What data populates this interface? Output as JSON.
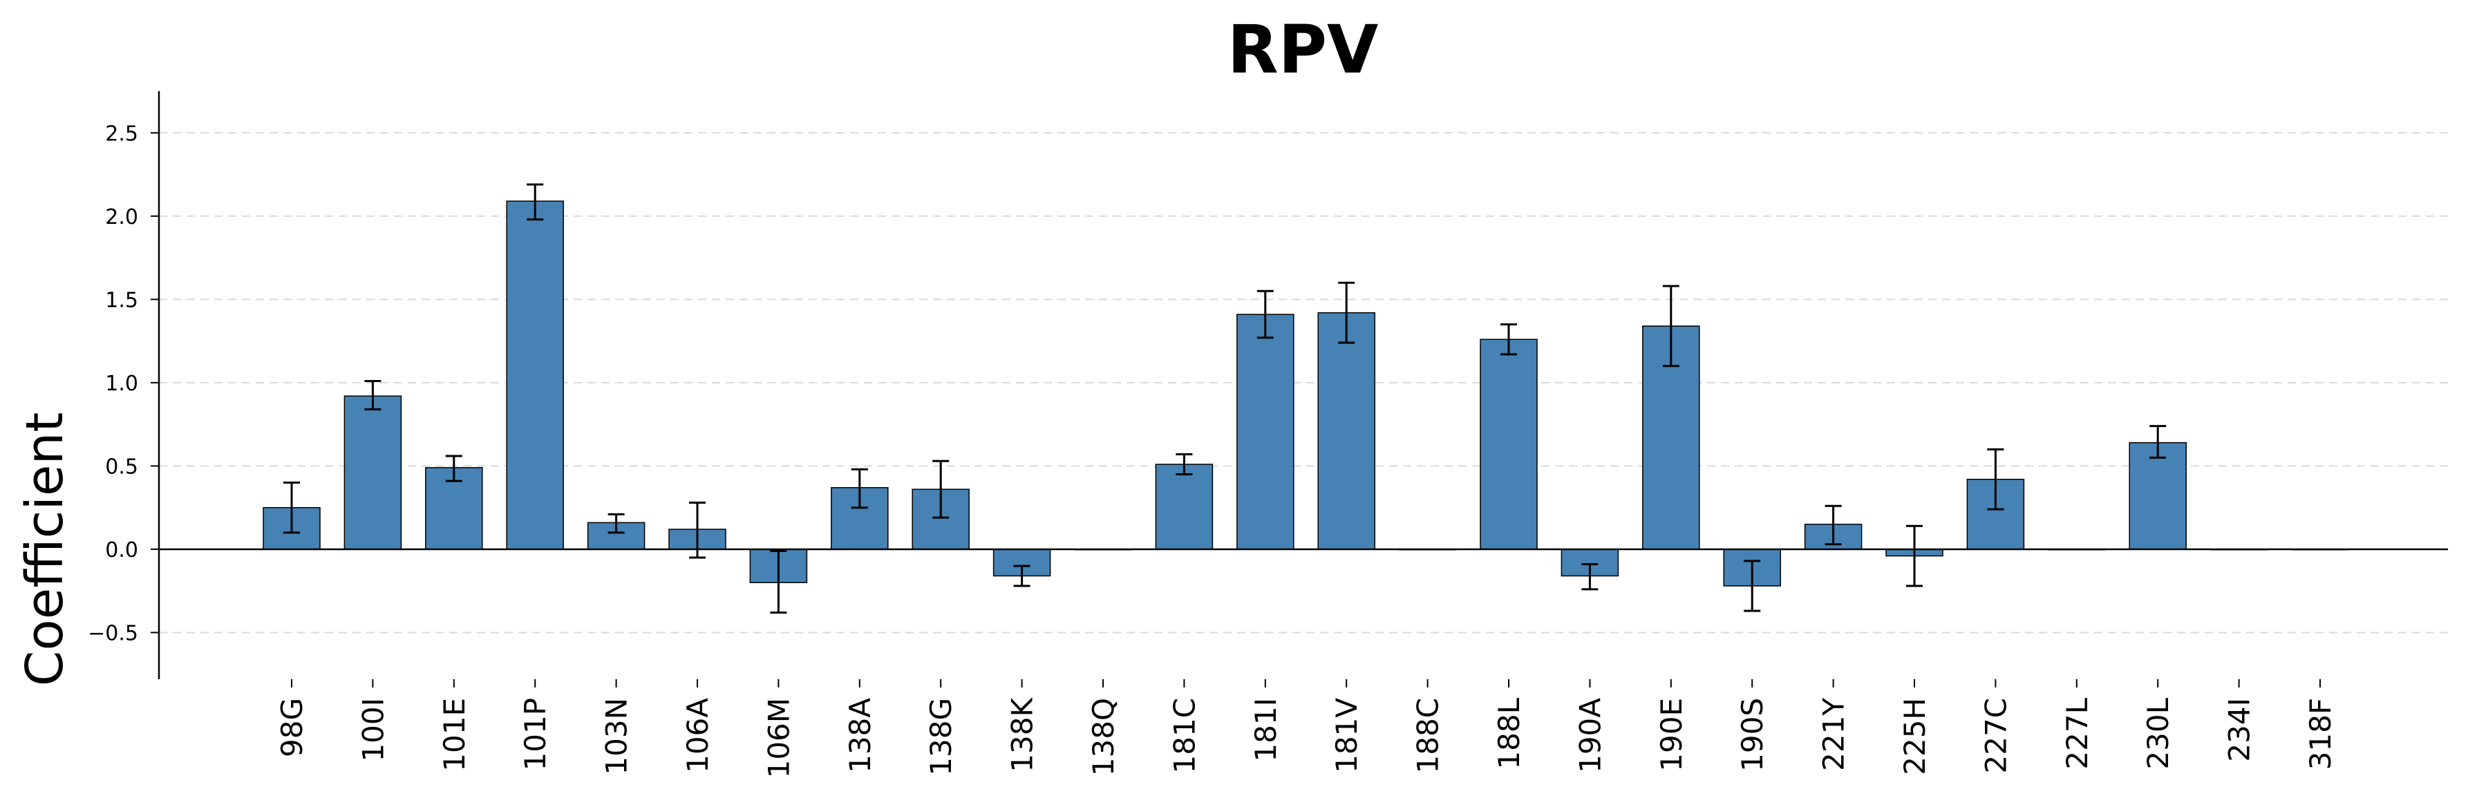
{
  "chart_data": {
    "type": "bar",
    "title": "RPV",
    "xlabel": "",
    "ylabel": "Coefficient",
    "ylim": [
      -0.78,
      2.75
    ],
    "yticks": [
      -0.5,
      0.0,
      0.5,
      1.0,
      1.5,
      2.0,
      2.5
    ],
    "ytick_labels": [
      "−0.5",
      "0.0",
      "0.5",
      "1.0",
      "1.5",
      "2.0",
      "2.5"
    ],
    "grid": "y-dashed",
    "bar_color": "#4682b4",
    "categories": [
      "98G",
      "100I",
      "101E",
      "101P",
      "103N",
      "106A",
      "106M",
      "138A",
      "138G",
      "138K",
      "138Q",
      "181C",
      "181I",
      "181V",
      "188C",
      "188L",
      "190A",
      "190E",
      "190S",
      "221Y",
      "225H",
      "227C",
      "227L",
      "230L",
      "234I",
      "318F"
    ],
    "values": [
      0.25,
      0.92,
      0.49,
      2.09,
      0.16,
      0.12,
      -0.2,
      0.37,
      0.36,
      -0.16,
      0.0,
      0.51,
      1.41,
      1.42,
      0.0,
      1.26,
      -0.16,
      1.34,
      -0.22,
      0.15,
      -0.04,
      0.42,
      0.0,
      0.64,
      0.0,
      0.0
    ],
    "error_low": [
      0.1,
      0.84,
      0.41,
      1.98,
      0.1,
      -0.05,
      -0.38,
      0.25,
      0.19,
      -0.22,
      0.0,
      0.45,
      1.27,
      1.24,
      0.0,
      1.17,
      -0.24,
      1.1,
      -0.37,
      0.03,
      -0.22,
      0.24,
      0.0,
      0.55,
      0.0,
      0.0
    ],
    "error_high": [
      0.4,
      1.01,
      0.56,
      2.19,
      0.21,
      0.28,
      -0.01,
      0.48,
      0.53,
      -0.1,
      0.0,
      0.57,
      1.55,
      1.6,
      0.0,
      1.35,
      -0.09,
      1.58,
      -0.07,
      0.26,
      0.14,
      0.6,
      0.0,
      0.74,
      0.0,
      0.0
    ]
  }
}
